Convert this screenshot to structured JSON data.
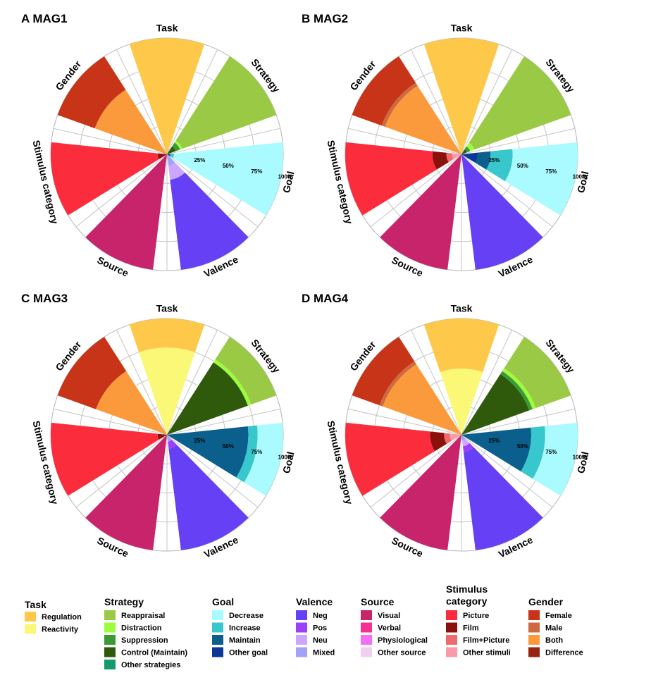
{
  "figure": {
    "sectors": [
      "Task",
      "Strategy",
      "Goal",
      "Valence",
      "Source",
      "Stimulus category",
      "Gender"
    ]
  },
  "chart_data": [
    {
      "type": "polar-stacked-bar",
      "panel": "A",
      "title": "A MAG1",
      "radial_ticks": [
        "25%",
        "50%",
        "75%",
        "100%"
      ],
      "sectors": [
        {
          "name": "Task",
          "segments": [
            {
              "label": "Regulation",
              "value": 100,
              "color": "#fec84a"
            }
          ]
        },
        {
          "name": "Strategy",
          "segments": [
            {
              "label": "Control (Maintain)",
              "value": 8,
              "color": "#2f5a0b"
            },
            {
              "label": "Suppression",
              "value": 4,
              "color": "#3b9a36"
            },
            {
              "label": "Distraction",
              "value": 2,
              "color": "#9bfd3b"
            },
            {
              "label": "Reappraisal",
              "value": 86,
              "color": "#9aca45"
            }
          ]
        },
        {
          "name": "Goal",
          "segments": [
            {
              "label": "Other goal",
              "value": 3,
              "color": "#0b3896"
            },
            {
              "label": "Increase",
              "value": 3,
              "color": "#38c7cc"
            },
            {
              "label": "Decrease",
              "value": 94,
              "color": "#a9fbff"
            }
          ]
        },
        {
          "name": "Valence",
          "segments": [
            {
              "label": "Mixed",
              "value": 10,
              "color": "#a2a3f8"
            },
            {
              "label": "Neu",
              "value": 12,
              "color": "#cda7ff"
            },
            {
              "label": "Neg",
              "value": 78,
              "color": "#6640f4"
            }
          ]
        },
        {
          "name": "Source",
          "segments": [
            {
              "label": "Visual",
              "value": 100,
              "color": "#c8246c"
            }
          ]
        },
        {
          "name": "Stimulus category",
          "segments": [
            {
              "label": "Film",
              "value": 8,
              "color": "#8b120c"
            },
            {
              "label": "Picture",
              "value": 92,
              "color": "#fb2c3c"
            }
          ]
        },
        {
          "name": "Gender",
          "segments": [
            {
              "label": "Both",
              "value": 66,
              "color": "#fb9a3c"
            },
            {
              "label": "Female",
              "value": 34,
              "color": "#c73417"
            }
          ]
        }
      ]
    },
    {
      "type": "polar-stacked-bar",
      "panel": "B",
      "title": "B MAG2",
      "radial_ticks": [
        "25%",
        "50%",
        "75%",
        "100%"
      ],
      "sectors": [
        {
          "name": "Task",
          "segments": [
            {
              "label": "Regulation",
              "value": 100,
              "color": "#fec84a"
            }
          ]
        },
        {
          "name": "Strategy",
          "segments": [
            {
              "label": "Control (Maintain)",
              "value": 5,
              "color": "#2f5a0b"
            },
            {
              "label": "Suppression",
              "value": 3,
              "color": "#3b9a36"
            },
            {
              "label": "Distraction",
              "value": 4,
              "color": "#9bfd3b"
            },
            {
              "label": "Reappraisal",
              "value": 88,
              "color": "#9aca45"
            }
          ]
        },
        {
          "name": "Goal",
          "segments": [
            {
              "label": "Other goal",
              "value": 14,
              "color": "#0b3896"
            },
            {
              "label": "Maintain",
              "value": 11,
              "color": "#0b5f8c"
            },
            {
              "label": "Increase",
              "value": 19,
              "color": "#38c7cc"
            },
            {
              "label": "Decrease",
              "value": 56,
              "color": "#a9fbff"
            }
          ]
        },
        {
          "name": "Valence",
          "segments": [
            {
              "label": "Neg",
              "value": 100,
              "color": "#6640f4"
            }
          ]
        },
        {
          "name": "Source",
          "segments": [
            {
              "label": "Visual",
              "value": 100,
              "color": "#c8246c"
            }
          ]
        },
        {
          "name": "Stimulus category",
          "segments": [
            {
              "label": "Other stimuli",
              "value": 8,
              "color": "#fa9aa8"
            },
            {
              "label": "Film+Picture",
              "value": 5,
              "color": "#ef6a6e"
            },
            {
              "label": "Film",
              "value": 12,
              "color": "#8b120c"
            },
            {
              "label": "Picture",
              "value": 75,
              "color": "#fb2c3c"
            }
          ]
        },
        {
          "name": "Gender",
          "segments": [
            {
              "label": "Both",
              "value": 70,
              "color": "#fb9a3c"
            },
            {
              "label": "Male",
              "value": 3,
              "color": "#cf6a40"
            },
            {
              "label": "Female",
              "value": 27,
              "color": "#c73417"
            }
          ]
        }
      ]
    },
    {
      "type": "polar-stacked-bar",
      "panel": "C",
      "title": "C MAG3",
      "radial_ticks": [
        "25%",
        "50%",
        "75%",
        "100%"
      ],
      "sectors": [
        {
          "name": "Task",
          "segments": [
            {
              "label": "Reactivity",
              "value": 75,
              "color": "#fbf877"
            },
            {
              "label": "Regulation",
              "value": 25,
              "color": "#fec84a"
            }
          ]
        },
        {
          "name": "Strategy",
          "segments": [
            {
              "label": "Control (Maintain)",
              "value": 74,
              "color": "#2f5a0b"
            },
            {
              "label": "Distraction",
              "value": 3,
              "color": "#9bfd3b"
            },
            {
              "label": "Reappraisal",
              "value": 23,
              "color": "#9aca45"
            }
          ]
        },
        {
          "name": "Goal",
          "segments": [
            {
              "label": "Maintain",
              "value": 70,
              "color": "#0b5f8c"
            },
            {
              "label": "Increase",
              "value": 8,
              "color": "#38c7cc"
            },
            {
              "label": "Decrease",
              "value": 22,
              "color": "#a9fbff"
            }
          ]
        },
        {
          "name": "Valence",
          "segments": [
            {
              "label": "Mixed",
              "value": 6,
              "color": "#a2a3f8"
            },
            {
              "label": "Pos",
              "value": 6,
              "color": "#9c3ff9"
            },
            {
              "label": "Neg",
              "value": 88,
              "color": "#6640f4"
            }
          ]
        },
        {
          "name": "Source",
          "segments": [
            {
              "label": "Visual",
              "value": 100,
              "color": "#c8246c"
            }
          ]
        },
        {
          "name": "Stimulus category",
          "segments": [
            {
              "label": "Film",
              "value": 8,
              "color": "#8b120c"
            },
            {
              "label": "Picture",
              "value": 92,
              "color": "#fb2c3c"
            }
          ]
        },
        {
          "name": "Gender",
          "segments": [
            {
              "label": "Both",
              "value": 65,
              "color": "#fb9a3c"
            },
            {
              "label": "Female",
              "value": 35,
              "color": "#c73417"
            }
          ]
        }
      ]
    },
    {
      "type": "polar-stacked-bar",
      "panel": "D",
      "title": "D MAG4",
      "radial_ticks": [
        "25%",
        "50%",
        "75%",
        "100%"
      ],
      "sectors": [
        {
          "name": "Task",
          "segments": [
            {
              "label": "Reactivity",
              "value": 57,
              "color": "#fbf877"
            },
            {
              "label": "Regulation",
              "value": 43,
              "color": "#fec84a"
            }
          ]
        },
        {
          "name": "Strategy",
          "segments": [
            {
              "label": "Control (Maintain)",
              "value": 62,
              "color": "#2f5a0b"
            },
            {
              "label": "Suppression",
              "value": 3,
              "color": "#3b9a36"
            },
            {
              "label": "Distraction",
              "value": 3,
              "color": "#9bfd3b"
            },
            {
              "label": "Reappraisal",
              "value": 32,
              "color": "#9aca45"
            }
          ]
        },
        {
          "name": "Goal",
          "segments": [
            {
              "label": "Maintain",
              "value": 60,
              "color": "#0b5f8c"
            },
            {
              "label": "Increase",
              "value": 12,
              "color": "#38c7cc"
            },
            {
              "label": "Decrease",
              "value": 28,
              "color": "#a9fbff"
            }
          ]
        },
        {
          "name": "Valence",
          "segments": [
            {
              "label": "Mixed",
              "value": 5,
              "color": "#a2a3f8"
            },
            {
              "label": "Neu",
              "value": 5,
              "color": "#cda7ff"
            },
            {
              "label": "Pos",
              "value": 5,
              "color": "#9c3ff9"
            },
            {
              "label": "Neg",
              "value": 85,
              "color": "#6640f4"
            }
          ]
        },
        {
          "name": "Source",
          "segments": [
            {
              "label": "Visual",
              "value": 100,
              "color": "#c8246c"
            }
          ]
        },
        {
          "name": "Stimulus category",
          "segments": [
            {
              "label": "Other stimuli",
              "value": 10,
              "color": "#fa9aa8"
            },
            {
              "label": "Film+Picture",
              "value": 5,
              "color": "#ef6a6e"
            },
            {
              "label": "Film",
              "value": 12,
              "color": "#8b120c"
            },
            {
              "label": "Picture",
              "value": 73,
              "color": "#fb2c3c"
            }
          ]
        },
        {
          "name": "Gender",
          "segments": [
            {
              "label": "Both",
              "value": 72,
              "color": "#fb9a3c"
            },
            {
              "label": "Male",
              "value": 3,
              "color": "#cf6a40"
            },
            {
              "label": "Female",
              "value": 25,
              "color": "#c73417"
            }
          ]
        }
      ]
    }
  ],
  "legend": [
    {
      "title": "Task",
      "items": [
        {
          "label": "Regulation",
          "color": "#fec84a"
        },
        {
          "label": "Reactivity",
          "color": "#fbf877"
        }
      ]
    },
    {
      "title": "Strategy",
      "items": [
        {
          "label": "Reappraisal",
          "color": "#9aca45"
        },
        {
          "label": "Distraction",
          "color": "#9bfd3b"
        },
        {
          "label": "Suppression",
          "color": "#3b9a36"
        },
        {
          "label": "Control (Maintain)",
          "color": "#2f5a0b"
        },
        {
          "label": "Other strategies",
          "color": "#159a6c"
        }
      ]
    },
    {
      "title": "Goal",
      "items": [
        {
          "label": "Decrease",
          "color": "#a9fbff"
        },
        {
          "label": "Increase",
          "color": "#38c7cc"
        },
        {
          "label": "Maintain",
          "color": "#0b5f8c"
        },
        {
          "label": "Other goal",
          "color": "#0b3896"
        }
      ]
    },
    {
      "title": "Valence",
      "items": [
        {
          "label": "Neg",
          "color": "#6640f4"
        },
        {
          "label": "Pos",
          "color": "#9c3ff9"
        },
        {
          "label": "Neu",
          "color": "#cda7ff"
        },
        {
          "label": "Mixed",
          "color": "#a2a3f8"
        }
      ]
    },
    {
      "title": "Source",
      "items": [
        {
          "label": "Visual",
          "color": "#c8246c"
        },
        {
          "label": "Verbal",
          "color": "#f53094"
        },
        {
          "label": "Physiological",
          "color": "#f56ef5"
        },
        {
          "label": "Other source",
          "color": "#f2cff2"
        }
      ]
    },
    {
      "title": "Stimulus category",
      "items": [
        {
          "label": "Picture",
          "color": "#fb2c3c"
        },
        {
          "label": "Film",
          "color": "#8b120c"
        },
        {
          "label": "Film+Picture",
          "color": "#ef6a6e"
        },
        {
          "label": "Other stimuli",
          "color": "#fa9aa8"
        }
      ]
    },
    {
      "title": "Gender",
      "items": [
        {
          "label": "Female",
          "color": "#c73417"
        },
        {
          "label": "Male",
          "color": "#cf6a40"
        },
        {
          "label": "Both",
          "color": "#fb9a3c"
        },
        {
          "label": "Difference",
          "color": "#9a2412"
        }
      ]
    }
  ]
}
